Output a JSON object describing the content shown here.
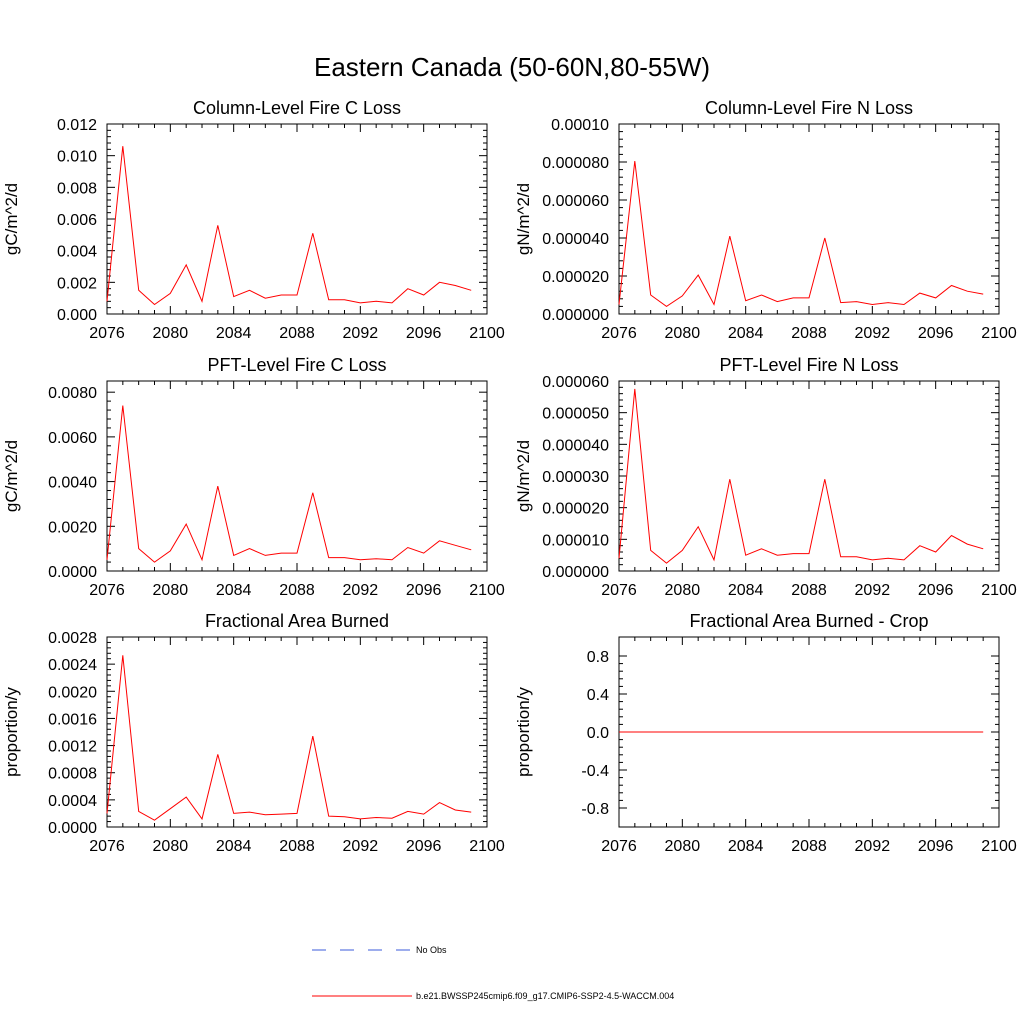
{
  "title": "Eastern Canada (50-60N,80-55W)",
  "legend": [
    {
      "label": "No Obs",
      "color": "#3b5bdb",
      "dash": "dashed"
    },
    {
      "label": "b.e21.BWSSP245cmip6.f09_g17.CMIP6-SSP2-4.5-WACCM.004",
      "color": "#ff0000",
      "dash": "solid"
    }
  ],
  "chart_data": [
    {
      "type": "line",
      "title": "Column-Level Fire C Loss",
      "ylabel": "gC/m^2/d",
      "xlim": [
        2076,
        2100
      ],
      "ylim": [
        0,
        0.012
      ],
      "xticks": [
        "2076",
        "2080",
        "2084",
        "2088",
        "2092",
        "2096",
        "2100"
      ],
      "yticks": [
        {
          "v": 0,
          "label": "0.000"
        },
        {
          "v": 0.002,
          "label": "0.002"
        },
        {
          "v": 0.004,
          "label": "0.004"
        },
        {
          "v": 0.006,
          "label": "0.006"
        },
        {
          "v": 0.008,
          "label": "0.008"
        },
        {
          "v": 0.01,
          "label": "0.010"
        },
        {
          "v": 0.012,
          "label": "0.012"
        }
      ],
      "x": [
        2076,
        2077,
        2078,
        2079,
        2080,
        2081,
        2082,
        2083,
        2084,
        2085,
        2086,
        2087,
        2088,
        2089,
        2090,
        2091,
        2092,
        2093,
        2094,
        2095,
        2096,
        2097,
        2098,
        2099
      ],
      "series": [
        {
          "color": "#ff0000",
          "values": [
            0.0008,
            0.0106,
            0.0015,
            0.0006,
            0.0013,
            0.0031,
            0.0008,
            0.0056,
            0.0011,
            0.0015,
            0.001,
            0.0012,
            0.0012,
            0.0051,
            0.0009,
            0.0009,
            0.0007,
            0.0008,
            0.0007,
            0.0016,
            0.0012,
            0.002,
            0.0018,
            0.0015
          ]
        }
      ]
    },
    {
      "type": "line",
      "title": "Column-Level Fire N Loss",
      "ylabel": "gN/m^2/d",
      "xlim": [
        2076,
        2100
      ],
      "ylim": [
        0,
        0.0001
      ],
      "xticks": [
        "2076",
        "2080",
        "2084",
        "2088",
        "2092",
        "2096",
        "2100"
      ],
      "yticks": [
        {
          "v": 0,
          "label": "0.000000"
        },
        {
          "v": 2e-05,
          "label": "0.000020"
        },
        {
          "v": 4e-05,
          "label": "0.000040"
        },
        {
          "v": 6e-05,
          "label": "0.000060"
        },
        {
          "v": 8e-05,
          "label": "0.000080"
        },
        {
          "v": 0.0001,
          "label": "0.00010"
        }
      ],
      "x": [
        2076,
        2077,
        2078,
        2079,
        2080,
        2081,
        2082,
        2083,
        2084,
        2085,
        2086,
        2087,
        2088,
        2089,
        2090,
        2091,
        2092,
        2093,
        2094,
        2095,
        2096,
        2097,
        2098,
        2099
      ],
      "series": [
        {
          "color": "#ff0000",
          "values": [
            5e-06,
            8.05e-05,
            1e-05,
            4e-06,
            9.5e-06,
            2.05e-05,
            5e-06,
            4.1e-05,
            7e-06,
            1e-05,
            6.5e-06,
            8.5e-06,
            8.5e-06,
            4e-05,
            6e-06,
            6.5e-06,
            5e-06,
            6e-06,
            5e-06,
            1.1e-05,
            8.5e-06,
            1.5e-05,
            1.2e-05,
            1.05e-05
          ]
        }
      ]
    },
    {
      "type": "line",
      "title": "PFT-Level Fire C Loss",
      "ylabel": "gC/m^2/d",
      "xlim": [
        2076,
        2100
      ],
      "ylim": [
        0,
        0.0085
      ],
      "xticks": [
        "2076",
        "2080",
        "2084",
        "2088",
        "2092",
        "2096",
        "2100"
      ],
      "yticks": [
        {
          "v": 0,
          "label": "0.0000"
        },
        {
          "v": 0.002,
          "label": "0.0020"
        },
        {
          "v": 0.004,
          "label": "0.0040"
        },
        {
          "v": 0.006,
          "label": "0.0060"
        },
        {
          "v": 0.008,
          "label": "0.0080"
        }
      ],
      "x": [
        2076,
        2077,
        2078,
        2079,
        2080,
        2081,
        2082,
        2083,
        2084,
        2085,
        2086,
        2087,
        2088,
        2089,
        2090,
        2091,
        2092,
        2093,
        2094,
        2095,
        2096,
        2097,
        2098,
        2099
      ],
      "series": [
        {
          "color": "#ff0000",
          "values": [
            0.0005,
            0.0074,
            0.001,
            0.0004,
            0.0009,
            0.0021,
            0.0005,
            0.0038,
            0.0007,
            0.001,
            0.0007,
            0.0008,
            0.0008,
            0.0035,
            0.0006,
            0.0006,
            0.0005,
            0.00055,
            0.0005,
            0.00105,
            0.0008,
            0.00135,
            0.00115,
            0.00095
          ]
        }
      ]
    },
    {
      "type": "line",
      "title": "PFT-Level Fire N Loss",
      "ylabel": "gN/m^2/d",
      "xlim": [
        2076,
        2100
      ],
      "ylim": [
        0,
        6e-05
      ],
      "xticks": [
        "2076",
        "2080",
        "2084",
        "2088",
        "2092",
        "2096",
        "2100"
      ],
      "yticks": [
        {
          "v": 0,
          "label": "0.000000"
        },
        {
          "v": 1e-05,
          "label": "0.000010"
        },
        {
          "v": 2e-05,
          "label": "0.000020"
        },
        {
          "v": 3e-05,
          "label": "0.000030"
        },
        {
          "v": 4e-05,
          "label": "0.000040"
        },
        {
          "v": 5e-05,
          "label": "0.000050"
        },
        {
          "v": 6e-05,
          "label": "0.000060"
        }
      ],
      "x": [
        2076,
        2077,
        2078,
        2079,
        2080,
        2081,
        2082,
        2083,
        2084,
        2085,
        2086,
        2087,
        2088,
        2089,
        2090,
        2091,
        2092,
        2093,
        2094,
        2095,
        2096,
        2097,
        2098,
        2099
      ],
      "series": [
        {
          "color": "#ff0000",
          "values": [
            4e-06,
            5.75e-05,
            6.5e-06,
            2.5e-06,
            6.5e-06,
            1.4e-05,
            3.5e-06,
            2.9e-05,
            5e-06,
            7e-06,
            5e-06,
            5.5e-06,
            5.5e-06,
            2.9e-05,
            4.5e-06,
            4.5e-06,
            3.5e-06,
            4e-06,
            3.5e-06,
            8e-06,
            6e-06,
            1.12e-05,
            8.5e-06,
            7e-06
          ]
        }
      ]
    },
    {
      "type": "line",
      "title": "Fractional Area Burned",
      "ylabel": "proportion/y",
      "xlim": [
        2076,
        2100
      ],
      "ylim": [
        0,
        0.0028
      ],
      "xticks": [
        "2076",
        "2080",
        "2084",
        "2088",
        "2092",
        "2096",
        "2100"
      ],
      "yticks": [
        {
          "v": 0,
          "label": "0.0000"
        },
        {
          "v": 0.0004,
          "label": "0.0004"
        },
        {
          "v": 0.0008,
          "label": "0.0008"
        },
        {
          "v": 0.0012,
          "label": "0.0012"
        },
        {
          "v": 0.0016,
          "label": "0.0016"
        },
        {
          "v": 0.002,
          "label": "0.0020"
        },
        {
          "v": 0.0024,
          "label": "0.0024"
        },
        {
          "v": 0.0028,
          "label": "0.0028"
        }
      ],
      "x": [
        2076,
        2077,
        2078,
        2079,
        2080,
        2081,
        2082,
        2083,
        2084,
        2085,
        2086,
        2087,
        2088,
        2089,
        2090,
        2091,
        2092,
        2093,
        2094,
        2095,
        2096,
        2097,
        2098,
        2099
      ],
      "series": [
        {
          "color": "#ff0000",
          "values": [
            0.0002,
            0.00253,
            0.00023,
            0.0001,
            0.00027,
            0.00044,
            0.00012,
            0.00107,
            0.0002,
            0.00022,
            0.00018,
            0.00019,
            0.0002,
            0.00134,
            0.00016,
            0.00015,
            0.00012,
            0.00014,
            0.00013,
            0.00023,
            0.00019,
            0.00036,
            0.00025,
            0.00022
          ]
        }
      ]
    },
    {
      "type": "line",
      "title": "Fractional Area Burned - Crop",
      "ylabel": "proportion/y",
      "xlim": [
        2076,
        2100
      ],
      "ylim": [
        -1.0,
        1.0
      ],
      "xticks": [
        "2076",
        "2080",
        "2084",
        "2088",
        "2092",
        "2096",
        "2100"
      ],
      "yticks": [
        {
          "v": -0.8,
          "label": "-0.8"
        },
        {
          "v": -0.4,
          "label": "-0.4"
        },
        {
          "v": 0,
          "label": "0.0"
        },
        {
          "v": 0.4,
          "label": "0.4"
        },
        {
          "v": 0.8,
          "label": "0.8"
        }
      ],
      "x": [
        2076,
        2077,
        2078,
        2079,
        2080,
        2081,
        2082,
        2083,
        2084,
        2085,
        2086,
        2087,
        2088,
        2089,
        2090,
        2091,
        2092,
        2093,
        2094,
        2095,
        2096,
        2097,
        2098,
        2099
      ],
      "series": [
        {
          "color": "#ff0000",
          "values": [
            0,
            0,
            0,
            0,
            0,
            0,
            0,
            0,
            0,
            0,
            0,
            0,
            0,
            0,
            0,
            0,
            0,
            0,
            0,
            0,
            0,
            0,
            0,
            0
          ]
        }
      ]
    }
  ]
}
